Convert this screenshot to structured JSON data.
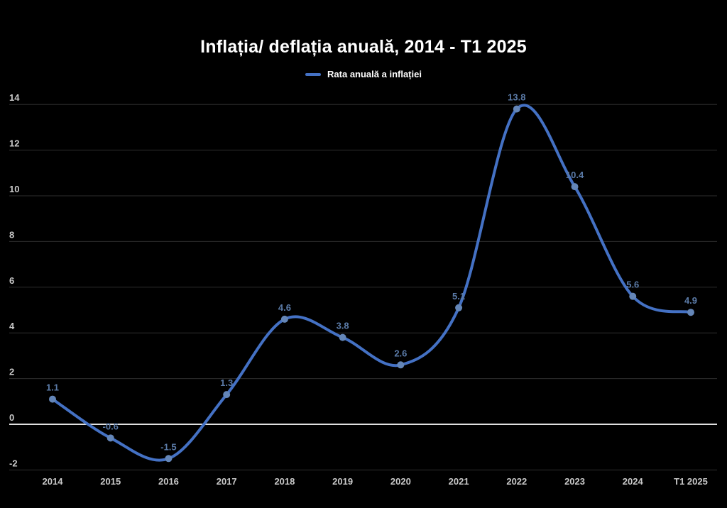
{
  "header": {
    "title": "Inflația/ deflația anuală, 2014 - T1 2025"
  },
  "legend": {
    "label": "Rata anuală a inflației",
    "swatch_color": "#4471c4"
  },
  "chart_data": {
    "type": "line",
    "title": "Inflația/ deflația anuală, 2014 - T1 2025",
    "categories": [
      "2014",
      "2015",
      "2016",
      "2017",
      "2018",
      "2019",
      "2020",
      "2021",
      "2022",
      "2023",
      "2024",
      "T1 2025"
    ],
    "series": [
      {
        "name": "Rata anuală a inflației",
        "values": [
          1.1,
          -0.6,
          -1.5,
          1.3,
          4.6,
          3.8,
          2.6,
          5.1,
          13.8,
          10.4,
          5.6,
          4.9
        ]
      }
    ],
    "value_labels": [
      "1.1",
      "-0.6",
      "-1.5",
      "1.3",
      "4.6",
      "3.8",
      "2.6",
      "5.1",
      "13.8",
      "10.4",
      "5.6",
      "4.9"
    ],
    "xlabel": "",
    "ylabel": "",
    "ylim": [
      -2,
      14
    ],
    "ytick_step": 2,
    "yticks": [
      -2,
      0,
      2,
      4,
      6,
      8,
      10,
      12,
      14
    ],
    "grid": true,
    "legend_position": "top",
    "line_style": "smooth",
    "colors": {
      "background": "#000000",
      "line": "#4471c4",
      "marker": "#6486b8",
      "value_label": "#5b7ba8",
      "axis_label": "#c9c9c9",
      "gridline": "#2e2e2e",
      "zero_line": "#e0e0e0",
      "title": "#ffffff",
      "legend_text": "#ffffff"
    }
  }
}
